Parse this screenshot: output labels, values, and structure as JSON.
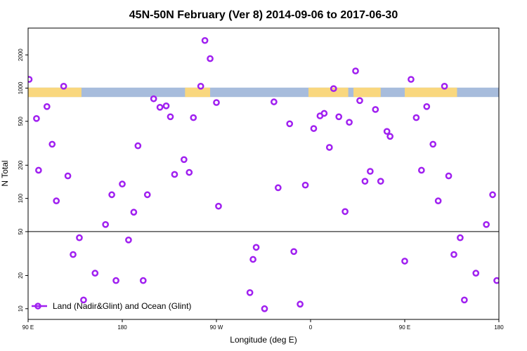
{
  "chart_data": {
    "type": "scatter",
    "title": "45N-50N February (Ver 8)   2014-09-06 to 2017-06-30",
    "xlabel": "Longitude (deg E)",
    "ylabel": "N Total",
    "xlim": [
      90,
      540
    ],
    "ylim": [
      8,
      3500
    ],
    "y_scale": "log",
    "x_ticks": [
      {
        "value": 90,
        "label": "90 E"
      },
      {
        "value": 180,
        "label": "180"
      },
      {
        "value": 270,
        "label": "90 W"
      },
      {
        "value": 360,
        "label": "0"
      },
      {
        "value": 450,
        "label": "90 E"
      },
      {
        "value": 540,
        "label": "180"
      }
    ],
    "y_ticks": [
      {
        "value": 10,
        "label": "10"
      },
      {
        "value": 20,
        "label": "20"
      },
      {
        "value": 50,
        "label": "50"
      },
      {
        "value": 100,
        "label": "100"
      },
      {
        "value": 200,
        "label": "200"
      },
      {
        "value": 500,
        "label": "500"
      },
      {
        "value": 1000,
        "label": "1000"
      },
      {
        "value": 2000,
        "label": "2000"
      }
    ],
    "reference_line_y": 50,
    "marker_color": "#a020f0",
    "map_strip": {
      "y_range": [
        830,
        1010
      ],
      "ocean_color": "#a7bcdc",
      "land_color": "#f9d77e",
      "land_intervals": [
        [
          90,
          141
        ],
        [
          240,
          264
        ],
        [
          358,
          396
        ],
        [
          401,
          427
        ],
        [
          450,
          500
        ],
        [
          540,
          590
        ]
      ]
    },
    "series": [
      {
        "name": "Land (Nadir&Glint) and Ocean (Glint)",
        "points": [
          {
            "x": 91,
            "y": 1200
          },
          {
            "x": 98,
            "y": 530
          },
          {
            "x": 100,
            "y": 180
          },
          {
            "x": 108,
            "y": 680
          },
          {
            "x": 113,
            "y": 310
          },
          {
            "x": 117,
            "y": 95
          },
          {
            "x": 124,
            "y": 1040
          },
          {
            "x": 128,
            "y": 160
          },
          {
            "x": 133,
            "y": 31
          },
          {
            "x": 139,
            "y": 44
          },
          {
            "x": 143,
            "y": 12
          },
          {
            "x": 154,
            "y": 21
          },
          {
            "x": 164,
            "y": 58
          },
          {
            "x": 170,
            "y": 108
          },
          {
            "x": 174,
            "y": 18
          },
          {
            "x": 180,
            "y": 135
          },
          {
            "x": 186,
            "y": 42
          },
          {
            "x": 191,
            "y": 75
          },
          {
            "x": 195,
            "y": 300
          },
          {
            "x": 200,
            "y": 18
          },
          {
            "x": 204,
            "y": 108
          },
          {
            "x": 210,
            "y": 800
          },
          {
            "x": 216,
            "y": 670
          },
          {
            "x": 222,
            "y": 690
          },
          {
            "x": 226,
            "y": 550
          },
          {
            "x": 230,
            "y": 165
          },
          {
            "x": 239,
            "y": 225
          },
          {
            "x": 244,
            "y": 172
          },
          {
            "x": 248,
            "y": 540
          },
          {
            "x": 255,
            "y": 1040
          },
          {
            "x": 259,
            "y": 2700
          },
          {
            "x": 264,
            "y": 1850
          },
          {
            "x": 270,
            "y": 740
          },
          {
            "x": 272,
            "y": 85
          },
          {
            "x": 302,
            "y": 14
          },
          {
            "x": 305,
            "y": 28
          },
          {
            "x": 308,
            "y": 36
          },
          {
            "x": 316,
            "y": 10
          },
          {
            "x": 325,
            "y": 750
          },
          {
            "x": 329,
            "y": 125
          },
          {
            "x": 340,
            "y": 475
          },
          {
            "x": 344,
            "y": 33
          },
          {
            "x": 350,
            "y": 11
          },
          {
            "x": 355,
            "y": 132
          },
          {
            "x": 363,
            "y": 430
          },
          {
            "x": 369,
            "y": 560
          },
          {
            "x": 373,
            "y": 590
          },
          {
            "x": 378,
            "y": 290
          },
          {
            "x": 382,
            "y": 990
          },
          {
            "x": 387,
            "y": 550
          },
          {
            "x": 393,
            "y": 76
          },
          {
            "x": 397,
            "y": 490
          },
          {
            "x": 403,
            "y": 1430
          },
          {
            "x": 407,
            "y": 770
          },
          {
            "x": 412,
            "y": 143
          },
          {
            "x": 417,
            "y": 176
          },
          {
            "x": 422,
            "y": 640
          },
          {
            "x": 427,
            "y": 143
          },
          {
            "x": 433,
            "y": 405
          },
          {
            "x": 436,
            "y": 365
          },
          {
            "x": 450,
            "y": 27
          },
          {
            "x": 456,
            "y": 1200
          },
          {
            "x": 461,
            "y": 540
          },
          {
            "x": 466,
            "y": 180
          },
          {
            "x": 471,
            "y": 680
          },
          {
            "x": 477,
            "y": 310
          },
          {
            "x": 482,
            "y": 95
          },
          {
            "x": 488,
            "y": 1040
          },
          {
            "x": 492,
            "y": 160
          },
          {
            "x": 497,
            "y": 31
          },
          {
            "x": 503,
            "y": 44
          },
          {
            "x": 507,
            "y": 12
          },
          {
            "x": 518,
            "y": 21
          },
          {
            "x": 528,
            "y": 58
          },
          {
            "x": 534,
            "y": 108
          },
          {
            "x": 538,
            "y": 18
          },
          {
            "x": 544,
            "y": 135
          }
        ]
      }
    ]
  }
}
